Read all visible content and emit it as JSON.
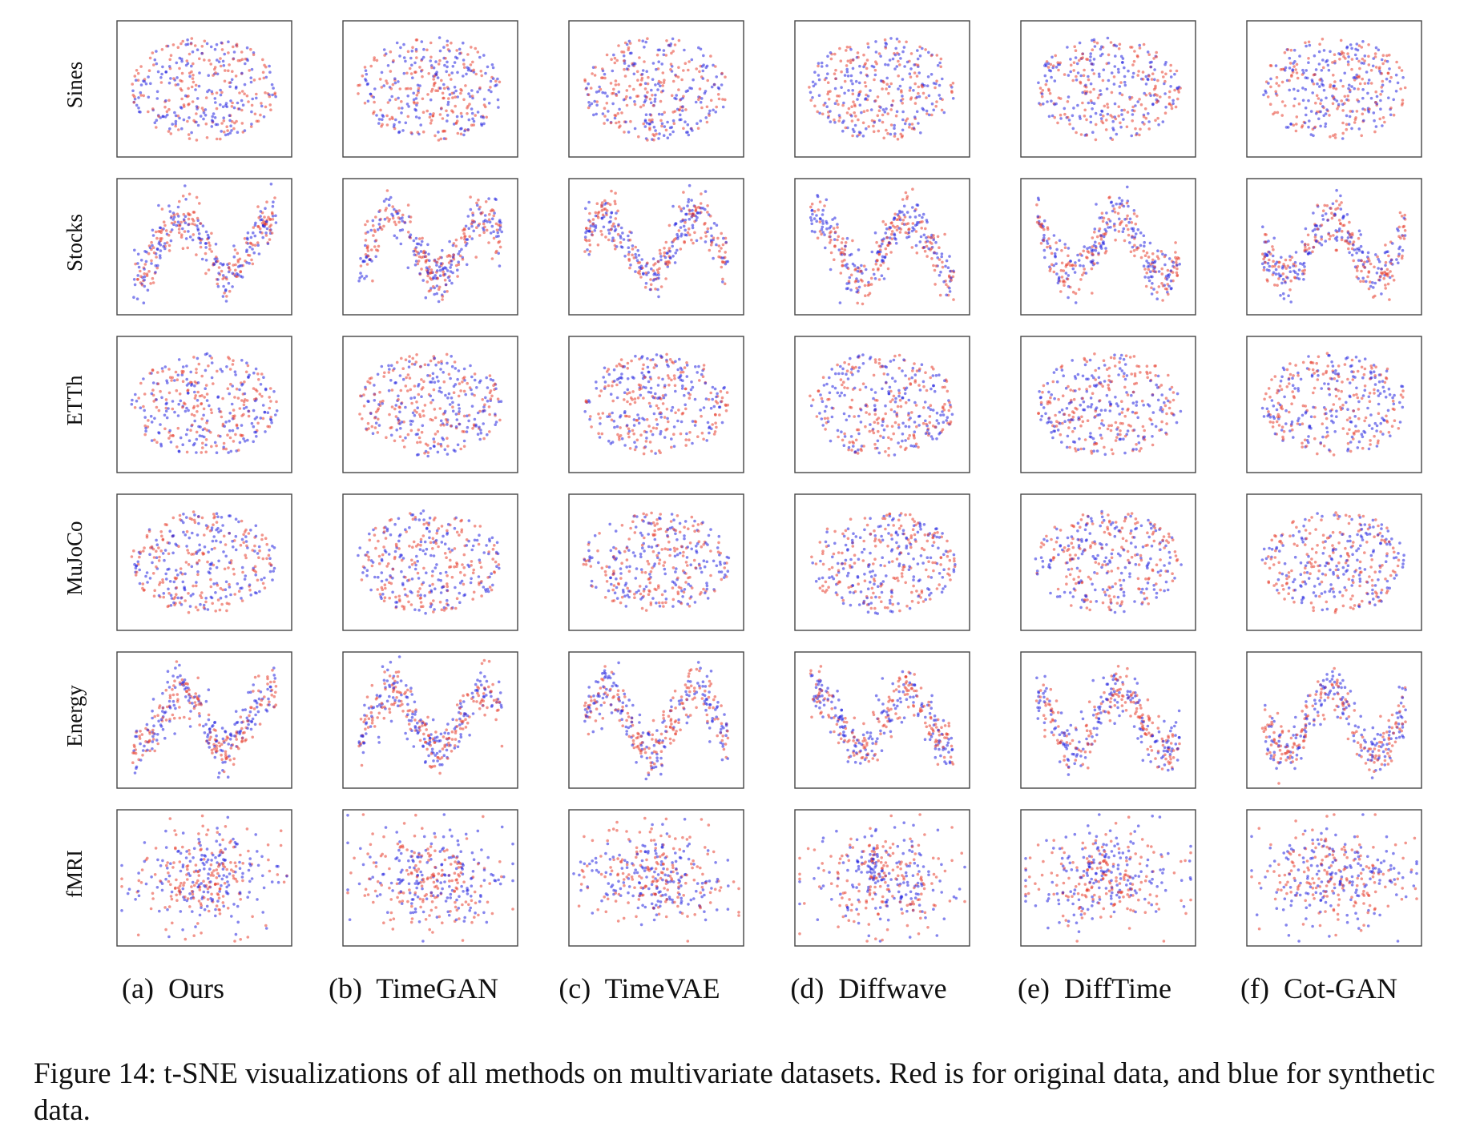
{
  "figure": {
    "caption": "Figure 14: t-SNE visualizations of all methods on multivariate datasets. Red is for original data, and blue for synthetic data."
  },
  "colors": {
    "original": "#e8402f",
    "synthetic": "#2323e0",
    "background": "#ffffff",
    "frame": "#444444"
  },
  "chart_data": {
    "type": "scatter",
    "rows": [
      "Sines",
      "Stocks",
      "ETTh",
      "MuJoCo",
      "Energy",
      "fMRI"
    ],
    "columns": [
      "(a)  Ours",
      "(b)  TimeGAN",
      "(c)  TimeVAE",
      "(d)  Diffwave",
      "(e)  DiffTime",
      "(f)  Cot-GAN"
    ],
    "series": [
      {
        "name": "original data",
        "color": "#e8402f"
      },
      {
        "name": "synthetic data",
        "color": "#2323e0"
      }
    ],
    "axes": "none",
    "grid": false,
    "legend": "none"
  }
}
